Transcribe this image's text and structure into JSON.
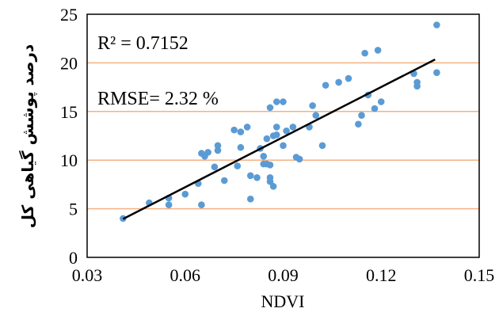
{
  "chart_data": {
    "type": "scatter",
    "xlabel": "NDVI",
    "ylabel": "درصد پوشش گیاهی کل",
    "xlim": [
      0.03,
      0.15
    ],
    "ylim": [
      0,
      25
    ],
    "xticks": [
      "0.03",
      "0.06",
      "0.09",
      "0.12",
      "0.15"
    ],
    "yticks": [
      "0",
      "5",
      "10",
      "15",
      "20",
      "25"
    ],
    "grid": "horizontal",
    "annotations": [
      "R² = 0.7152",
      "RMSE= 2.32 %"
    ],
    "series": [
      {
        "points": [
          [
            0.041,
            4.0
          ],
          [
            0.049,
            5.6
          ],
          [
            0.055,
            5.4
          ],
          [
            0.055,
            6.1
          ],
          [
            0.06,
            6.5
          ],
          [
            0.064,
            7.6
          ],
          [
            0.065,
            5.4
          ],
          [
            0.065,
            10.7
          ],
          [
            0.066,
            10.4
          ],
          [
            0.067,
            10.8
          ],
          [
            0.069,
            9.3
          ],
          [
            0.07,
            11.0
          ],
          [
            0.07,
            11.5
          ],
          [
            0.072,
            7.9
          ],
          [
            0.075,
            13.1
          ],
          [
            0.076,
            9.4
          ],
          [
            0.077,
            12.9
          ],
          [
            0.077,
            11.3
          ],
          [
            0.079,
            13.4
          ],
          [
            0.08,
            6.0
          ],
          [
            0.08,
            8.4
          ],
          [
            0.082,
            8.2
          ],
          [
            0.083,
            11.2
          ],
          [
            0.084,
            9.6
          ],
          [
            0.084,
            10.4
          ],
          [
            0.085,
            9.6
          ],
          [
            0.085,
            12.2
          ],
          [
            0.086,
            15.4
          ],
          [
            0.086,
            7.8
          ],
          [
            0.086,
            9.5
          ],
          [
            0.086,
            8.2
          ],
          [
            0.087,
            7.3
          ],
          [
            0.087,
            12.5
          ],
          [
            0.088,
            16.0
          ],
          [
            0.088,
            12.6
          ],
          [
            0.088,
            13.4
          ],
          [
            0.09,
            11.5
          ],
          [
            0.09,
            16.0
          ],
          [
            0.091,
            13.0
          ],
          [
            0.093,
            13.4
          ],
          [
            0.094,
            10.3
          ],
          [
            0.095,
            10.1
          ],
          [
            0.098,
            13.4
          ],
          [
            0.099,
            15.6
          ],
          [
            0.1,
            14.6
          ],
          [
            0.102,
            11.5
          ],
          [
            0.103,
            17.7
          ],
          [
            0.107,
            18.0
          ],
          [
            0.11,
            18.4
          ],
          [
            0.113,
            13.7
          ],
          [
            0.114,
            14.6
          ],
          [
            0.115,
            21.0
          ],
          [
            0.116,
            16.7
          ],
          [
            0.118,
            15.3
          ],
          [
            0.119,
            21.3
          ],
          [
            0.12,
            16.0
          ],
          [
            0.13,
            18.9
          ],
          [
            0.131,
            17.6
          ],
          [
            0.131,
            18.0
          ],
          [
            0.137,
            19.0
          ],
          [
            0.137,
            23.9
          ]
        ]
      }
    ],
    "trendline": {
      "x": [
        0.041,
        0.1365
      ],
      "y": [
        3.95,
        20.35
      ]
    },
    "colors": {
      "points": "#5b9bd5",
      "grid": "#f4b183",
      "trendline": "#000000"
    }
  }
}
